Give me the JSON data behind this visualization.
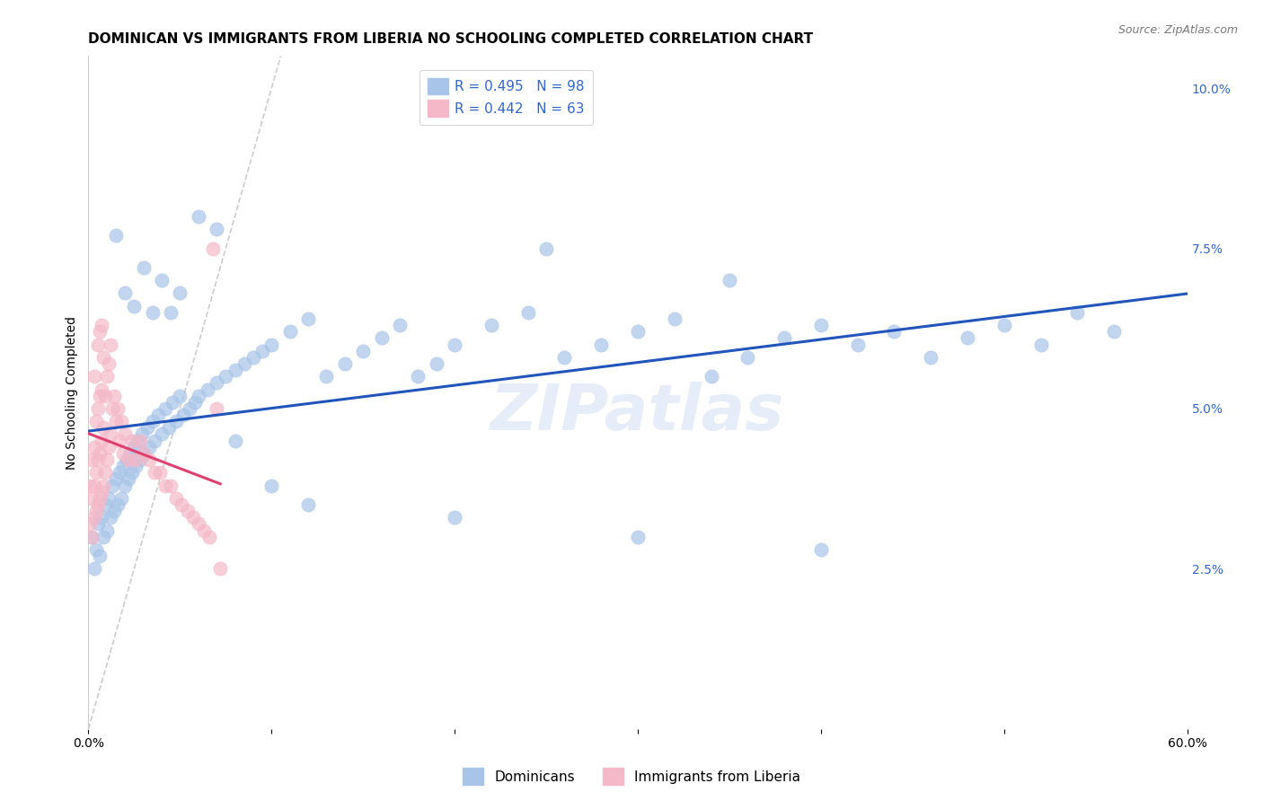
{
  "title": "DOMINICAN VS IMMIGRANTS FROM LIBERIA NO SCHOOLING COMPLETED CORRELATION CHART",
  "source": "Source: ZipAtlas.com",
  "xlabel": "",
  "ylabel": "No Schooling Completed",
  "xlim": [
    0.0,
    0.6
  ],
  "ylim": [
    0.0,
    0.105
  ],
  "xtick_vals": [
    0.0,
    0.1,
    0.2,
    0.3,
    0.4,
    0.5,
    0.6
  ],
  "xticklabels": [
    "0.0%",
    "",
    "",
    "",
    "",
    "",
    "60.0%"
  ],
  "yticks_right": [
    0.025,
    0.05,
    0.075,
    0.1
  ],
  "ytick_labels_right": [
    "2.5%",
    "5.0%",
    "7.5%",
    "10.0%"
  ],
  "blue_R": 0.495,
  "blue_N": 98,
  "pink_R": 0.442,
  "pink_N": 63,
  "blue_color": "#a8c4e8",
  "pink_color": "#f4b8c8",
  "blue_line_color": "#2255bb",
  "pink_line_color": "#e04070",
  "diagonal_color": "#cccccc",
  "watermark": "ZIPatlas",
  "background_color": "#ffffff",
  "grid_color": "#e0e0e0",
  "title_fontsize": 11,
  "axis_label_fontsize": 10,
  "tick_fontsize": 10,
  "legend_fontsize": 11,
  "blue_scatter_x": [
    0.002,
    0.003,
    0.004,
    0.005,
    0.006,
    0.007,
    0.008,
    0.009,
    0.01,
    0.011,
    0.012,
    0.013,
    0.014,
    0.015,
    0.016,
    0.017,
    0.018,
    0.019,
    0.02,
    0.021,
    0.022,
    0.023,
    0.024,
    0.025,
    0.026,
    0.027,
    0.028,
    0.029,
    0.03,
    0.032,
    0.033,
    0.035,
    0.036,
    0.038,
    0.04,
    0.042,
    0.044,
    0.046,
    0.048,
    0.05,
    0.052,
    0.055,
    0.058,
    0.06,
    0.065,
    0.07,
    0.075,
    0.08,
    0.085,
    0.09,
    0.095,
    0.1,
    0.11,
    0.12,
    0.13,
    0.14,
    0.15,
    0.16,
    0.17,
    0.18,
    0.19,
    0.2,
    0.22,
    0.24,
    0.26,
    0.28,
    0.3,
    0.32,
    0.34,
    0.36,
    0.38,
    0.4,
    0.42,
    0.44,
    0.46,
    0.48,
    0.5,
    0.52,
    0.54,
    0.56,
    0.015,
    0.02,
    0.025,
    0.03,
    0.035,
    0.04,
    0.045,
    0.05,
    0.06,
    0.07,
    0.08,
    0.1,
    0.12,
    0.2,
    0.3,
    0.4,
    0.25,
    0.35
  ],
  "blue_scatter_y": [
    0.03,
    0.025,
    0.028,
    0.032,
    0.027,
    0.033,
    0.03,
    0.035,
    0.031,
    0.036,
    0.033,
    0.038,
    0.034,
    0.039,
    0.035,
    0.04,
    0.036,
    0.041,
    0.038,
    0.042,
    0.039,
    0.043,
    0.04,
    0.044,
    0.041,
    0.045,
    0.042,
    0.046,
    0.043,
    0.047,
    0.044,
    0.048,
    0.045,
    0.049,
    0.046,
    0.05,
    0.047,
    0.051,
    0.048,
    0.052,
    0.049,
    0.05,
    0.051,
    0.052,
    0.053,
    0.054,
    0.055,
    0.056,
    0.057,
    0.058,
    0.059,
    0.06,
    0.062,
    0.064,
    0.055,
    0.057,
    0.059,
    0.061,
    0.063,
    0.055,
    0.057,
    0.06,
    0.063,
    0.065,
    0.058,
    0.06,
    0.062,
    0.064,
    0.055,
    0.058,
    0.061,
    0.063,
    0.06,
    0.062,
    0.058,
    0.061,
    0.063,
    0.06,
    0.065,
    0.062,
    0.077,
    0.068,
    0.066,
    0.072,
    0.065,
    0.07,
    0.065,
    0.068,
    0.08,
    0.078,
    0.045,
    0.038,
    0.035,
    0.033,
    0.03,
    0.028,
    0.075,
    0.07
  ],
  "pink_scatter_x": [
    0.001,
    0.001,
    0.002,
    0.002,
    0.002,
    0.003,
    0.003,
    0.003,
    0.003,
    0.004,
    0.004,
    0.004,
    0.005,
    0.005,
    0.005,
    0.005,
    0.006,
    0.006,
    0.006,
    0.006,
    0.007,
    0.007,
    0.007,
    0.007,
    0.008,
    0.008,
    0.008,
    0.009,
    0.009,
    0.01,
    0.01,
    0.011,
    0.011,
    0.012,
    0.012,
    0.013,
    0.014,
    0.015,
    0.016,
    0.017,
    0.018,
    0.019,
    0.02,
    0.022,
    0.024,
    0.026,
    0.028,
    0.03,
    0.033,
    0.036,
    0.039,
    0.042,
    0.045,
    0.048,
    0.051,
    0.054,
    0.057,
    0.06,
    0.063,
    0.066,
    0.068,
    0.07,
    0.072
  ],
  "pink_scatter_y": [
    0.032,
    0.038,
    0.03,
    0.036,
    0.042,
    0.033,
    0.038,
    0.044,
    0.055,
    0.034,
    0.04,
    0.048,
    0.035,
    0.042,
    0.05,
    0.06,
    0.036,
    0.043,
    0.052,
    0.062,
    0.037,
    0.045,
    0.053,
    0.063,
    0.038,
    0.047,
    0.058,
    0.04,
    0.052,
    0.042,
    0.055,
    0.044,
    0.057,
    0.046,
    0.06,
    0.05,
    0.052,
    0.048,
    0.05,
    0.045,
    0.048,
    0.043,
    0.046,
    0.042,
    0.045,
    0.042,
    0.045,
    0.043,
    0.042,
    0.04,
    0.04,
    0.038,
    0.038,
    0.036,
    0.035,
    0.034,
    0.033,
    0.032,
    0.031,
    0.03,
    0.075,
    0.05,
    0.025
  ]
}
